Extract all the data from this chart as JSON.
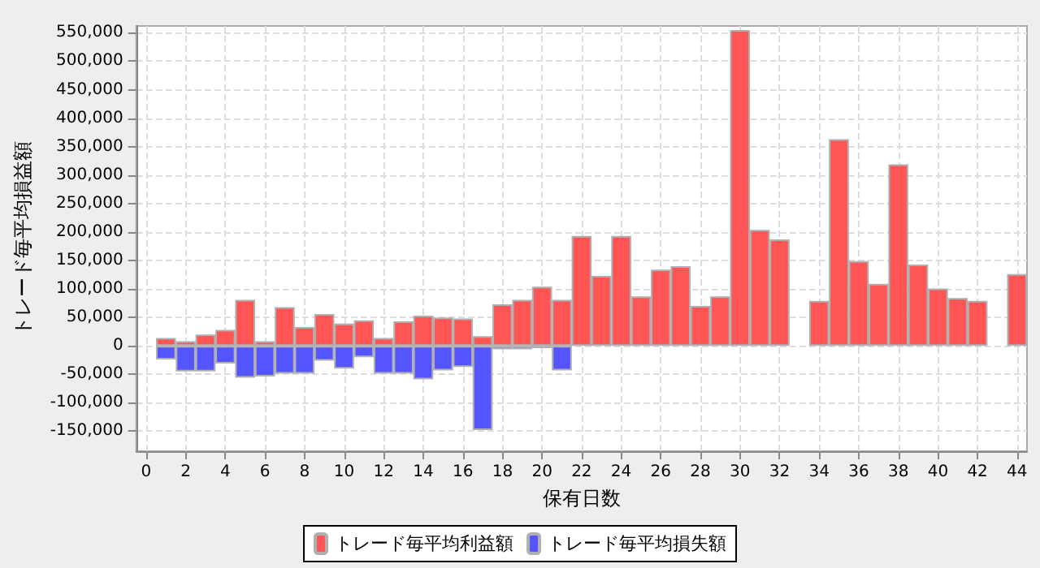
{
  "chart_data": {
    "type": "bar",
    "stacked": true,
    "xlabel": "保有日数",
    "ylabel": "トレード毎平均損益額",
    "x": [
      1,
      2,
      3,
      4,
      5,
      6,
      7,
      8,
      9,
      10,
      11,
      12,
      13,
      14,
      15,
      16,
      17,
      18,
      19,
      20,
      21,
      22,
      23,
      24,
      25,
      26,
      27,
      28,
      29,
      30,
      31,
      32,
      33,
      34,
      35,
      36,
      37,
      38,
      39,
      40,
      41,
      42,
      43,
      44
    ],
    "series": [
      {
        "name": "トレード毎平均利益額",
        "color": "#ff5555",
        "values": [
          14000,
          8000,
          20000,
          28000,
          81000,
          8000,
          68000,
          33000,
          56000,
          39000,
          45000,
          14000,
          43000,
          53000,
          50000,
          48000,
          17000,
          73000,
          81000,
          104000,
          81000,
          193000,
          123000,
          193000,
          87000,
          134000,
          140000,
          70000,
          87000,
          555000,
          204000,
          187000,
          null,
          79000,
          363000,
          149000,
          109000,
          319000,
          143000,
          101000,
          84000,
          79000,
          null,
          126000
        ]
      },
      {
        "name": "トレード毎平均損失額",
        "color": "#5555ff",
        "values": [
          -24000,
          -45000,
          -45000,
          -31000,
          -56000,
          -54000,
          -49000,
          -49000,
          -26000,
          -40000,
          -20000,
          -49000,
          -49000,
          -59000,
          -43000,
          -37000,
          -148000,
          -6000,
          -6000,
          -4000,
          -43000,
          null,
          null,
          null,
          null,
          null,
          null,
          null,
          null,
          null,
          null,
          null,
          null,
          null,
          null,
          null,
          null,
          null,
          null,
          null,
          null,
          null,
          null,
          null
        ]
      }
    ],
    "xlim": [
      -0.5,
      44.5
    ],
    "xticks": [
      0,
      2,
      4,
      6,
      8,
      10,
      12,
      14,
      16,
      18,
      20,
      22,
      24,
      26,
      28,
      30,
      32,
      34,
      36,
      38,
      40,
      42,
      44
    ],
    "ylim": [
      -185000,
      562000
    ],
    "yticks": [
      {
        "value": -150000,
        "label": "-150,000"
      },
      {
        "value": -100000,
        "label": "-100,000"
      },
      {
        "value": -50000,
        "label": "-50,000"
      },
      0,
      {
        "value": 50000,
        "label": "50,000"
      },
      {
        "value": 100000,
        "label": "100,000"
      },
      {
        "value": 150000,
        "label": "150,000"
      },
      {
        "value": 200000,
        "label": "200,000"
      },
      {
        "value": 250000,
        "label": "250,000"
      },
      {
        "value": 300000,
        "label": "300,000"
      },
      {
        "value": 350000,
        "label": "350,000"
      },
      {
        "value": 400000,
        "label": "400,000"
      },
      {
        "value": 450000,
        "label": "450,000"
      },
      {
        "value": 500000,
        "label": "500,000"
      },
      {
        "value": 550000,
        "label": "550,000"
      }
    ],
    "grid": true,
    "legend": "bottom"
  }
}
